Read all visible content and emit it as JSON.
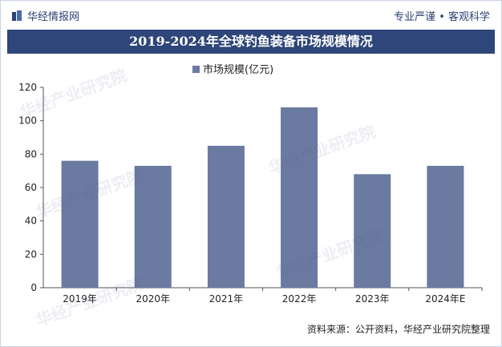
{
  "header": {
    "brand": "华经情报网",
    "slogan": "专业严谨 • 客观科学",
    "title": "2019-2024年全球钓鱼装备市场规模情况"
  },
  "chart_data": {
    "type": "bar",
    "categories": [
      "2019年",
      "2020年",
      "2021年",
      "2022年",
      "2023年",
      "2024年E"
    ],
    "series": [
      {
        "name": "市场规模(亿元)",
        "values": [
          76,
          73,
          85,
          108,
          68,
          73
        ]
      }
    ],
    "ylim": [
      0,
      120
    ],
    "yticks": [
      0,
      20,
      40,
      60,
      80,
      100,
      120
    ],
    "legend": "top-center",
    "grid": false,
    "colors": {
      "bar": "#6a7aa0",
      "axis": "#555555"
    }
  },
  "footer": {
    "source": "资料来源：公开资料，华经产业研究院整理",
    "watermark": "华经产业研究院"
  }
}
